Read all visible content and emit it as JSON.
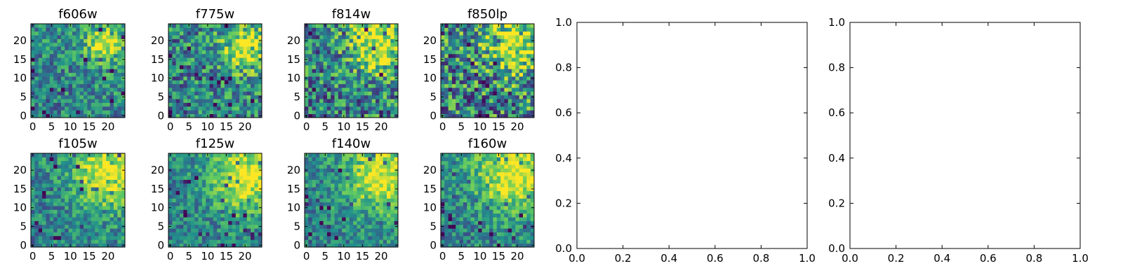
{
  "chart_data": [
    {
      "type": "heatmap",
      "title": "f606w",
      "xlim": [
        0,
        24
      ],
      "ylim": [
        0,
        24
      ],
      "xticks": [
        0,
        5,
        10,
        15,
        20
      ],
      "yticks": [
        0,
        5,
        10,
        15,
        20
      ],
      "bright_spot": {
        "x": 19,
        "y": 19,
        "radius": 3
      }
    },
    {
      "type": "heatmap",
      "title": "f775w",
      "xlim": [
        0,
        24
      ],
      "ylim": [
        0,
        24
      ],
      "xticks": [
        0,
        5,
        10,
        15,
        20
      ],
      "yticks": [
        0,
        5,
        10,
        15,
        20
      ],
      "bright_spot": {
        "x": 20,
        "y": 18,
        "radius": 4
      }
    },
    {
      "type": "heatmap",
      "title": "f814w",
      "xlim": [
        0,
        24
      ],
      "ylim": [
        0,
        24
      ],
      "xticks": [
        0,
        5,
        10,
        15,
        20
      ],
      "yticks": [
        0,
        5,
        10,
        15,
        20
      ],
      "bright_spot": {
        "x": 19,
        "y": 19,
        "radius": 5
      }
    },
    {
      "type": "heatmap",
      "title": "f850lp",
      "xlim": [
        0,
        24
      ],
      "ylim": [
        0,
        24
      ],
      "xticks": [
        0,
        5,
        10,
        15,
        20
      ],
      "yticks": [
        0,
        5,
        10,
        15,
        20
      ],
      "bright_spot": {
        "x": 19,
        "y": 19,
        "radius": 5
      }
    },
    {
      "type": "heatmap",
      "title": "f105w",
      "xlim": [
        0,
        24
      ],
      "ylim": [
        0,
        24
      ],
      "xticks": [
        0,
        5,
        10,
        15,
        20
      ],
      "yticks": [
        0,
        5,
        10,
        15,
        20
      ],
      "bright_spot": {
        "x": 20,
        "y": 19,
        "radius": 6
      }
    },
    {
      "type": "heatmap",
      "title": "f125w",
      "xlim": [
        0,
        24
      ],
      "ylim": [
        0,
        24
      ],
      "xticks": [
        0,
        5,
        10,
        15,
        20
      ],
      "yticks": [
        0,
        5,
        10,
        15,
        20
      ],
      "bright_spot": {
        "x": 20,
        "y": 18,
        "radius": 6
      }
    },
    {
      "type": "heatmap",
      "title": "f140w",
      "xlim": [
        0,
        24
      ],
      "ylim": [
        0,
        24
      ],
      "xticks": [
        0,
        5,
        10,
        15,
        20
      ],
      "yticks": [
        0,
        5,
        10,
        15,
        20
      ],
      "bright_spot": {
        "x": 20,
        "y": 18,
        "radius": 6
      }
    },
    {
      "type": "heatmap",
      "title": "f160w",
      "xlim": [
        0,
        24
      ],
      "ylim": [
        0,
        24
      ],
      "xticks": [
        0,
        5,
        10,
        15,
        20
      ],
      "yticks": [
        0,
        5,
        10,
        15,
        20
      ],
      "bright_spot": {
        "x": 19,
        "y": 19,
        "radius": 7
      }
    },
    {
      "type": "line",
      "title": "",
      "xlim": [
        0,
        1
      ],
      "ylim": [
        0,
        1
      ],
      "xticks": [
        "0.0",
        "0.2",
        "0.4",
        "0.6",
        "0.8",
        "1.0"
      ],
      "yticks": [
        "0.0",
        "0.2",
        "0.4",
        "0.6",
        "0.8",
        "1.0"
      ],
      "series": []
    },
    {
      "type": "line",
      "title": "",
      "xlim": [
        0,
        1
      ],
      "ylim": [
        0,
        1
      ],
      "xticks": [
        "0.0",
        "0.2",
        "0.4",
        "0.6",
        "0.8",
        "1.0"
      ],
      "yticks": [
        "0.0",
        "0.2",
        "0.4",
        "0.6",
        "0.8",
        "1.0"
      ],
      "series": []
    }
  ],
  "colormap": [
    "#440154",
    "#3b528b",
    "#21918c",
    "#5ec962",
    "#fde725"
  ]
}
